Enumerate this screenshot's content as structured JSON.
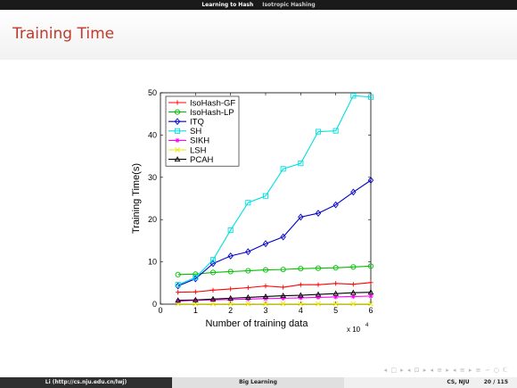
{
  "header": {
    "section_active": "Learning to Hash",
    "section_sub": "Isotropic Hashing"
  },
  "slide": {
    "title": "Training Time"
  },
  "footer": {
    "author": "Li (http://cs.nju.edu.cn/lwj)",
    "talk": "Big Learning",
    "institute": "CS, NJU",
    "page": "20 / 115"
  },
  "nav_symbols": "◂ □ ▸ ◂ ⊡ ▸ ◂ ≡ ▸ ◂ ≡ ▸ ≡ ∽ ○ ℂ",
  "colors": {
    "title": "#c0392b",
    "IsoHash-GF": "#ff0000",
    "IsoHash-LP": "#00c000",
    "ITQ": "#0000c8",
    "SH": "#00e0e0",
    "SIKH": "#ff00ff",
    "LSH": "#e8e800",
    "PCAH": "#000000"
  },
  "chart_data": {
    "type": "line",
    "xlabel": "Number of training data",
    "x_multiplier": "x 10",
    "x_multiplier_exp": "4",
    "ylabel": "Training Time(s)",
    "xlim": [
      0,
      6
    ],
    "ylim": [
      0,
      50
    ],
    "xticks": [
      0,
      1,
      2,
      3,
      4,
      5,
      6
    ],
    "yticks": [
      0,
      10,
      20,
      30,
      40,
      50
    ],
    "legend_position": "top-left",
    "x": [
      0.5,
      1.0,
      1.5,
      2.0,
      2.5,
      3.0,
      3.5,
      4.0,
      4.5,
      5.0,
      5.5,
      6.0
    ],
    "series": [
      {
        "name": "IsoHash-GF",
        "marker": "plus",
        "values": [
          2.8,
          2.9,
          3.3,
          3.6,
          3.9,
          4.3,
          4.0,
          4.6,
          4.6,
          4.9,
          4.7,
          5.1
        ]
      },
      {
        "name": "IsoHash-LP",
        "marker": "circle",
        "values": [
          7.0,
          7.1,
          7.5,
          7.7,
          7.9,
          8.1,
          8.2,
          8.4,
          8.5,
          8.6,
          8.8,
          9.0
        ]
      },
      {
        "name": "ITQ",
        "marker": "diamond",
        "values": [
          4.3,
          6.0,
          9.6,
          11.4,
          12.4,
          14.3,
          15.9,
          20.6,
          21.5,
          23.5,
          26.5,
          29.3
        ]
      },
      {
        "name": "SH",
        "marker": "square",
        "values": [
          4.6,
          6.3,
          10.5,
          17.5,
          24.0,
          25.6,
          32.0,
          33.3,
          40.8,
          41.0,
          49.3,
          49.0
        ]
      },
      {
        "name": "SIKH",
        "marker": "star",
        "values": [
          0.7,
          0.9,
          1.0,
          1.1,
          1.2,
          1.3,
          1.4,
          1.5,
          1.6,
          1.7,
          1.8,
          1.9
        ]
      },
      {
        "name": "LSH",
        "marker": "x",
        "values": [
          0.1,
          0.1,
          0.1,
          0.1,
          0.1,
          0.1,
          0.1,
          0.1,
          0.1,
          0.1,
          0.1,
          0.1
        ]
      },
      {
        "name": "PCAH",
        "marker": "triangle",
        "values": [
          0.9,
          1.0,
          1.2,
          1.4,
          1.6,
          1.8,
          2.0,
          2.1,
          2.3,
          2.5,
          2.7,
          2.8
        ]
      }
    ]
  }
}
